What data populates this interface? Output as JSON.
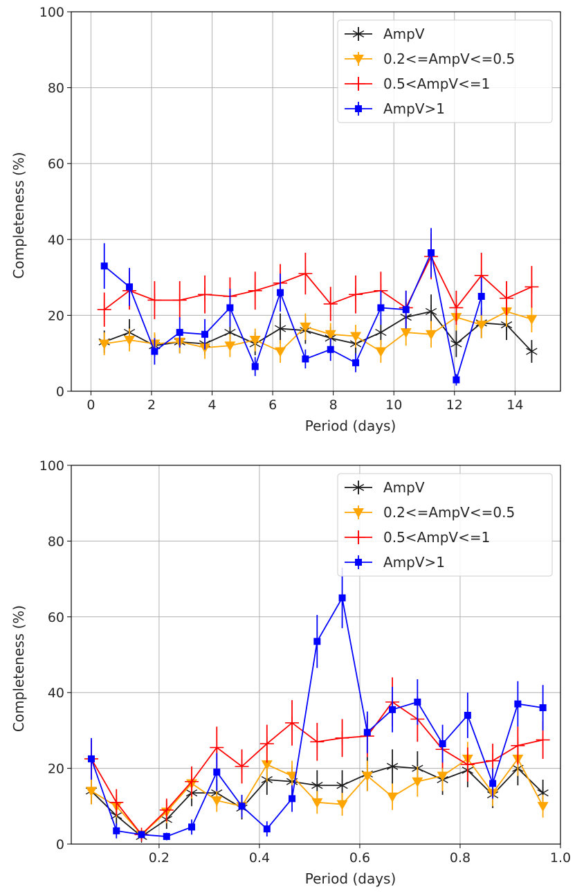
{
  "chart_data": [
    {
      "type": "line",
      "xlabel": "Period (days)",
      "ylabel": "Completeness (%)",
      "xlim": [
        -0.65,
        15.5
      ],
      "ylim": [
        0,
        100
      ],
      "xticks": [
        0,
        2,
        4,
        6,
        8,
        10,
        12,
        14
      ],
      "xtick_labels": [
        "0",
        "2",
        "4",
        "6",
        "8",
        "10",
        "12",
        "14"
      ],
      "yticks": [
        0,
        20,
        40,
        60,
        80,
        100
      ],
      "ytick_labels": [
        "0",
        "20",
        "40",
        "60",
        "80",
        "100"
      ],
      "grid": true,
      "legend": "top-right",
      "series": [
        {
          "name": "AmpV",
          "color": "#1a1a1a",
          "marker": "star",
          "x": [
            0.44,
            1.27,
            2.1,
            2.93,
            3.76,
            4.59,
            5.42,
            6.25,
            7.08,
            7.91,
            8.74,
            9.57,
            10.4,
            11.23,
            12.06,
            12.89,
            13.72,
            14.55
          ],
          "y": [
            13,
            15.5,
            12,
            13,
            12.5,
            15.5,
            12.5,
            16.5,
            16,
            14,
            12.5,
            15.5,
            19.5,
            21,
            12.5,
            18,
            17.5,
            10.5
          ],
          "err": [
            3,
            3.5,
            3,
            3,
            3,
            3.5,
            3,
            4,
            3.5,
            3,
            3,
            3.5,
            4,
            4.5,
            3.5,
            4,
            4,
            3
          ]
        },
        {
          "name": "0.2<=AmpV<=0.5",
          "color": "#ffa500",
          "marker": "triangle-down",
          "x": [
            0.44,
            1.27,
            2.1,
            2.93,
            3.76,
            4.59,
            5.42,
            6.25,
            7.08,
            7.91,
            8.74,
            9.57,
            10.4,
            11.23,
            12.06,
            12.89,
            13.72,
            14.55
          ],
          "y": [
            12.5,
            13.5,
            12.5,
            13,
            11.5,
            12,
            13.5,
            10.5,
            17,
            15,
            14.5,
            10.5,
            15.5,
            15,
            19.5,
            17.5,
            21,
            19
          ],
          "err": [
            3,
            3,
            3,
            3,
            3,
            3,
            3,
            3,
            3.5,
            3,
            3,
            3,
            3.5,
            3.5,
            3.5,
            3.5,
            4,
            3.5
          ]
        },
        {
          "name": "0.5<AmpV<=1",
          "color": "#ff0000",
          "marker": "plus",
          "x": [
            0.44,
            1.27,
            2.1,
            2.93,
            3.76,
            4.59,
            5.42,
            6.25,
            7.08,
            7.91,
            8.74,
            9.57,
            10.4,
            11.23,
            12.06,
            12.89,
            13.72,
            14.55
          ],
          "y": [
            21.5,
            26.5,
            24,
            24,
            25.5,
            25,
            26.5,
            28.5,
            31,
            23,
            25.5,
            26.5,
            22,
            35.5,
            22,
            30.5,
            24.5,
            27.5
          ],
          "err": [
            4.5,
            5,
            5,
            5,
            5,
            5,
            5,
            5,
            5.5,
            4.5,
            5,
            5,
            4.5,
            6,
            4.5,
            6,
            4.5,
            5.5
          ]
        },
        {
          "name": "AmpV>1",
          "color": "#0000ff",
          "marker": "square",
          "x": [
            0.44,
            1.27,
            2.1,
            2.93,
            3.76,
            4.59,
            5.42,
            6.25,
            7.08,
            7.91,
            8.74,
            9.57,
            10.4,
            11.23,
            12.06,
            12.89
          ],
          "y": [
            33,
            27.5,
            10.5,
            15.5,
            15,
            22,
            6.5,
            26,
            8.5,
            11,
            7.5,
            22,
            21.5,
            36.5,
            3,
            25
          ],
          "err": [
            6,
            5,
            3.5,
            4,
            4,
            5,
            2.5,
            5,
            2.5,
            3,
            2.5,
            4.5,
            5,
            6.5,
            1.5,
            5
          ]
        }
      ]
    },
    {
      "type": "line",
      "xlabel": "Period (days)",
      "ylabel": "Completeness (%)",
      "xlim": [
        0.025,
        1.0
      ],
      "ylim": [
        0,
        100
      ],
      "xticks": [
        0.2,
        0.4,
        0.6,
        0.8,
        1.0
      ],
      "xtick_labels": [
        "0.2",
        "0.4",
        "0.6",
        "0.8",
        "1.0"
      ],
      "yticks": [
        0,
        20,
        40,
        60,
        80,
        100
      ],
      "ytick_labels": [
        "0",
        "20",
        "40",
        "60",
        "80",
        "100"
      ],
      "grid": true,
      "legend": "top-right",
      "series": [
        {
          "name": "AmpV",
          "color": "#1a1a1a",
          "marker": "star",
          "x": [
            0.065,
            0.115,
            0.165,
            0.215,
            0.265,
            0.315,
            0.365,
            0.415,
            0.465,
            0.515,
            0.565,
            0.615,
            0.665,
            0.715,
            0.765,
            0.815,
            0.865,
            0.915,
            0.965
          ],
          "y": [
            14,
            7.5,
            2,
            6.5,
            13.5,
            13.5,
            9.5,
            17,
            16.5,
            15.5,
            15.5,
            18.5,
            20.5,
            20,
            17,
            19.5,
            13,
            20,
            13.5
          ],
          "err": [
            3.5,
            2.5,
            1,
            2.5,
            3.5,
            3.5,
            3,
            4,
            4,
            4,
            4,
            4.5,
            4.5,
            4.5,
            4,
            4.5,
            3.5,
            4.5,
            3.5
          ]
        },
        {
          "name": "0.2<=AmpV<=0.5",
          "color": "#ffa500",
          "marker": "triangle-down",
          "x": [
            0.065,
            0.115,
            0.165,
            0.215,
            0.265,
            0.315,
            0.365,
            0.415,
            0.465,
            0.515,
            0.565,
            0.615,
            0.665,
            0.715,
            0.765,
            0.815,
            0.865,
            0.915,
            0.965
          ],
          "y": [
            14,
            10,
            2.5,
            8.5,
            16,
            11.5,
            10,
            21,
            18,
            11,
            10.5,
            18,
            12.5,
            16.5,
            18,
            22.5,
            13.5,
            22.5,
            10
          ],
          "err": [
            3.5,
            3,
            1,
            3,
            4,
            3,
            3,
            4.5,
            4,
            3,
            3,
            4,
            3.5,
            4,
            4,
            4.5,
            3.5,
            4.5,
            3
          ]
        },
        {
          "name": "0.5<AmpV<=1",
          "color": "#ff0000",
          "marker": "plus",
          "x": [
            0.065,
            0.115,
            0.165,
            0.215,
            0.265,
            0.315,
            0.365,
            0.415,
            0.465,
            0.515,
            0.565,
            0.615,
            0.665,
            0.715,
            0.765,
            0.815,
            0.865,
            0.915,
            0.965
          ],
          "y": [
            22.5,
            11,
            2.5,
            9,
            16.5,
            25.5,
            20.5,
            26.5,
            32,
            27,
            28,
            28.5,
            37.5,
            33,
            25,
            21,
            22,
            26,
            27.5
          ],
          "err": [
            5,
            3.5,
            1,
            3,
            4,
            5.5,
            4.5,
            5,
            6,
            5,
            5,
            5.5,
            6.5,
            6,
            5,
            4.5,
            4.5,
            5,
            5
          ]
        },
        {
          "name": "AmpV>1",
          "color": "#0000ff",
          "marker": "square",
          "x": [
            0.065,
            0.115,
            0.165,
            0.215,
            0.265,
            0.315,
            0.365,
            0.415,
            0.465,
            0.515,
            0.565,
            0.615,
            0.665,
            0.715,
            0.765,
            0.815,
            0.865,
            0.915,
            0.965
          ],
          "y": [
            22.5,
            3.5,
            2.5,
            2,
            4.5,
            19,
            10,
            4,
            12,
            53.5,
            65,
            29.5,
            35.5,
            37.5,
            26.5,
            34,
            16,
            37,
            36
          ],
          "err": [
            5.5,
            2,
            1,
            1,
            2,
            5,
            3,
            2,
            3.5,
            7,
            8,
            5.5,
            6,
            6,
            5,
            6,
            4,
            6,
            6
          ]
        }
      ]
    }
  ]
}
